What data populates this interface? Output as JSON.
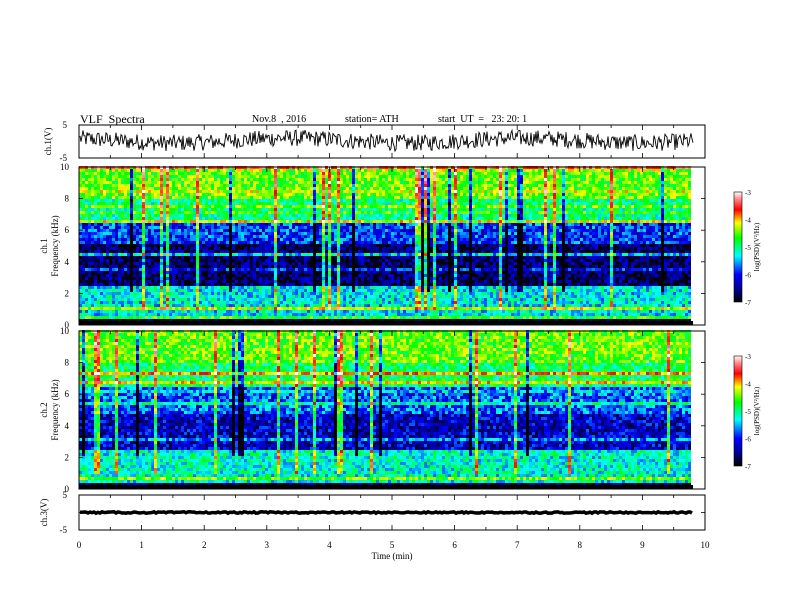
{
  "header": {
    "title": "VLF  Spectra",
    "date": "Nov.8  , 2016",
    "station": "station= ATH",
    "start": "start  UT  =   23: 20: 1"
  },
  "chart_data": [
    {
      "type": "line",
      "panel": "ch1-waveform",
      "ylabel": "ch.1(V)",
      "ylim": [
        -5,
        5
      ],
      "yticks": [
        "5",
        "-5"
      ],
      "xlim": [
        0,
        10
      ],
      "series": [
        {
          "approx_level_V": 0.3,
          "noise_amplitude_V": 2.5
        }
      ],
      "trace_color": "#000000"
    },
    {
      "type": "heatmap",
      "panel": "ch1-spectrogram",
      "ylabel": "ch.1",
      "ylabel2": "Frequency  (kHz)",
      "ylim": [
        0,
        10
      ],
      "yticks": [
        "0",
        "2",
        "4",
        "6",
        "8",
        "10"
      ],
      "xlim": [
        0,
        9.8
      ],
      "colorbar": {
        "label": "log(PSD)(V²/Hz)",
        "range": [
          -7,
          -3
        ],
        "ticks": [
          "-3",
          "-4",
          "-5",
          "-6",
          "-7"
        ]
      },
      "bands": [
        {
          "from_kHz": 0,
          "to_kHz": 0.3,
          "level": -7
        },
        {
          "from_kHz": 0.3,
          "to_kHz": 2.5,
          "level": -5.6
        },
        {
          "from_kHz": 2.5,
          "to_kHz": 5.2,
          "level": -6.7
        },
        {
          "from_kHz": 5.2,
          "to_kHz": 6.5,
          "level": -6.1
        },
        {
          "from_kHz": 6.5,
          "to_kHz": 8.0,
          "level": -5.3
        },
        {
          "from_kHz": 8.0,
          "to_kHz": 10,
          "level": -4.8
        }
      ]
    },
    {
      "type": "heatmap",
      "panel": "ch2-spectrogram",
      "ylabel": "ch.2",
      "ylabel2": "Frequency  (kHz)",
      "ylim": [
        0,
        10
      ],
      "yticks": [
        "0",
        "2",
        "4",
        "6",
        "8",
        "10"
      ],
      "xlim": [
        0,
        9.8
      ],
      "colorbar": {
        "label": "log(PSD)(V²/Hz)",
        "range": [
          -7,
          -3
        ],
        "ticks": [
          "-3",
          "-4",
          "-5",
          "-6",
          "-7"
        ]
      },
      "bands": [
        {
          "from_kHz": 0,
          "to_kHz": 0.3,
          "level": -6.8
        },
        {
          "from_kHz": 0.3,
          "to_kHz": 2.5,
          "level": -5.5
        },
        {
          "from_kHz": 2.5,
          "to_kHz": 5.0,
          "level": -6.4
        },
        {
          "from_kHz": 5.0,
          "to_kHz": 6.5,
          "level": -6.0
        },
        {
          "from_kHz": 6.5,
          "to_kHz": 8.0,
          "level": -5.2
        },
        {
          "from_kHz": 8.0,
          "to_kHz": 10,
          "level": -4.8
        }
      ]
    },
    {
      "type": "line",
      "panel": "ch3-waveform",
      "ylabel": "ch.3(V)",
      "ylim": [
        -5,
        5
      ],
      "yticks": [
        "5",
        "0",
        "-5"
      ],
      "xlim": [
        0,
        10
      ],
      "xlabel": "Time  (min)",
      "xticks": [
        "0",
        "1",
        "2",
        "3",
        "4",
        "5",
        "6",
        "7",
        "8",
        "9",
        "10"
      ],
      "series": [
        {
          "approx_level_V": 0.0,
          "noise_amplitude_V": 0.2
        }
      ],
      "trace_color": "#000000"
    }
  ]
}
